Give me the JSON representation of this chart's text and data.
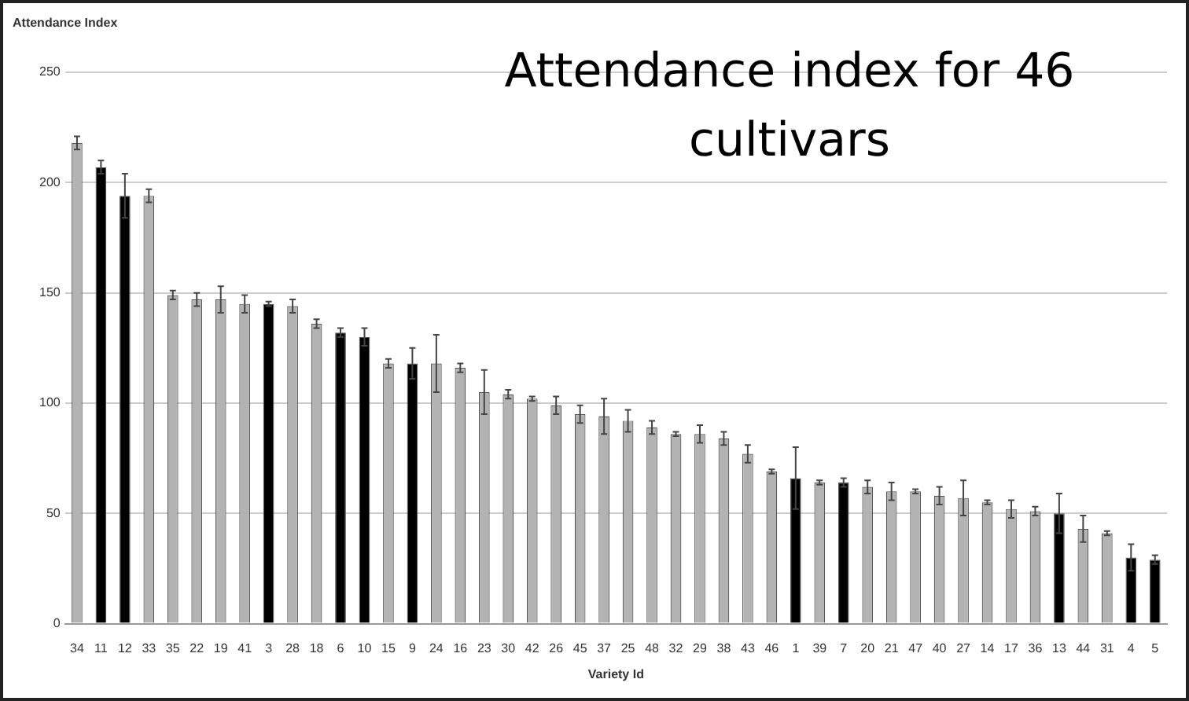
{
  "chart_data": {
    "type": "bar",
    "title": "Attendance index for 46 cultivars",
    "xlabel": "Variety Id",
    "ylabel": "Attendance Index",
    "categories": [
      "34",
      "11",
      "12",
      "33",
      "35",
      "22",
      "19",
      "41",
      "3",
      "28",
      "18",
      "6",
      "10",
      "15",
      "9",
      "24",
      "16",
      "23",
      "30",
      "42",
      "26",
      "45",
      "37",
      "25",
      "48",
      "32",
      "29",
      "38",
      "43",
      "46",
      "1",
      "39",
      "7",
      "20",
      "21",
      "47",
      "40",
      "27",
      "14",
      "17",
      "36",
      "13",
      "44",
      "31",
      "4",
      "5"
    ],
    "values": [
      218,
      207,
      194,
      194,
      149,
      147,
      147,
      145,
      145,
      144,
      136,
      132,
      130,
      118,
      118,
      118,
      116,
      105,
      104,
      102,
      99,
      95,
      94,
      92,
      89,
      86,
      86,
      84,
      77,
      69,
      66,
      64,
      64,
      62,
      60,
      60,
      58,
      57,
      55,
      52,
      51,
      50,
      43,
      41,
      30,
      29
    ],
    "errors": [
      3,
      3,
      10,
      3,
      2,
      3,
      6,
      4,
      1,
      3,
      2,
      2,
      4,
      2,
      7,
      13,
      2,
      10,
      2,
      1,
      4,
      4,
      8,
      5,
      3,
      1,
      4,
      3,
      4,
      1,
      14,
      1,
      2,
      3,
      4,
      1,
      4,
      8,
      1,
      4,
      2,
      9,
      6,
      1,
      6,
      2
    ],
    "colors": [
      "#b3b3b3",
      "#000000",
      "#000000",
      "#b3b3b3",
      "#b3b3b3",
      "#b3b3b3",
      "#b3b3b3",
      "#b3b3b3",
      "#000000",
      "#b3b3b3",
      "#b3b3b3",
      "#000000",
      "#000000",
      "#b3b3b3",
      "#000000",
      "#b3b3b3",
      "#b3b3b3",
      "#b3b3b3",
      "#b3b3b3",
      "#b3b3b3",
      "#b3b3b3",
      "#b3b3b3",
      "#b3b3b3",
      "#b3b3b3",
      "#b3b3b3",
      "#b3b3b3",
      "#b3b3b3",
      "#b3b3b3",
      "#b3b3b3",
      "#b3b3b3",
      "#000000",
      "#b3b3b3",
      "#000000",
      "#b3b3b3",
      "#b3b3b3",
      "#b3b3b3",
      "#b3b3b3",
      "#b3b3b3",
      "#b3b3b3",
      "#b3b3b3",
      "#b3b3b3",
      "#000000",
      "#b3b3b3",
      "#b3b3b3",
      "#000000",
      "#000000"
    ],
    "ylim": [
      0,
      250
    ],
    "yticks": [
      0,
      50,
      100,
      150,
      200,
      250
    ],
    "grid": "y",
    "legend": false
  }
}
